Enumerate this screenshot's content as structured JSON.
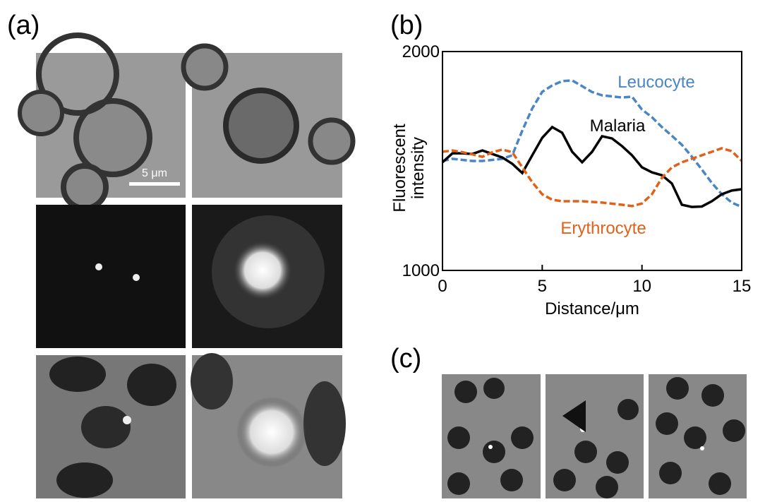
{
  "panels": {
    "a": "(a)",
    "b": "(b)",
    "c": "(c)"
  },
  "scale_bar": "5 μm",
  "chart_data": {
    "type": "line",
    "xlabel": "Distance/μm",
    "ylabel": [
      "Fluorescent",
      "intensity"
    ],
    "x": [
      0,
      0.5,
      1,
      1.5,
      2,
      2.5,
      3,
      3.5,
      4,
      4.5,
      5,
      5.5,
      6,
      6.5,
      7,
      7.5,
      8,
      8.5,
      9,
      9.5,
      10,
      10.5,
      11,
      11.5,
      12,
      12.5,
      13,
      13.5,
      14,
      14.5,
      15
    ],
    "series": [
      {
        "name": "Leucocyte",
        "color": "#4a86c5",
        "dashed": true,
        "values": [
          1500,
          1510,
          1505,
          1500,
          1500,
          1505,
          1510,
          1526,
          1639,
          1740,
          1816,
          1845,
          1865,
          1868,
          1842,
          1815,
          1800,
          1795,
          1790,
          1794,
          1735,
          1700,
          1655,
          1615,
          1574,
          1520,
          1461,
          1400,
          1348,
          1310,
          1290
        ]
      },
      {
        "name": "Malaria",
        "color": "#000000",
        "dashed": false,
        "values": [
          1494,
          1535,
          1535,
          1532,
          1548,
          1532,
          1516,
          1487,
          1445,
          1526,
          1606,
          1655,
          1629,
          1542,
          1494,
          1542,
          1613,
          1603,
          1568,
          1526,
          1471,
          1448,
          1435,
          1397,
          1300,
          1290,
          1292,
          1316,
          1348,
          1365,
          1371
        ]
      },
      {
        "name": "Erythrocyte",
        "color": "#e0621a",
        "dashed": true,
        "values": [
          1542,
          1548,
          1540,
          1530,
          1519,
          1540,
          1552,
          1540,
          1471,
          1403,
          1348,
          1323,
          1316,
          1316,
          1316,
          1313,
          1310,
          1305,
          1300,
          1294,
          1306,
          1348,
          1423,
          1471,
          1494,
          1510,
          1526,
          1542,
          1558,
          1545,
          1500
        ]
      }
    ],
    "xlim": [
      0,
      15
    ],
    "xticks": [
      0,
      5,
      10,
      15
    ],
    "ylim": [
      1000,
      2000
    ],
    "yticks": [
      1000,
      2000
    ]
  }
}
